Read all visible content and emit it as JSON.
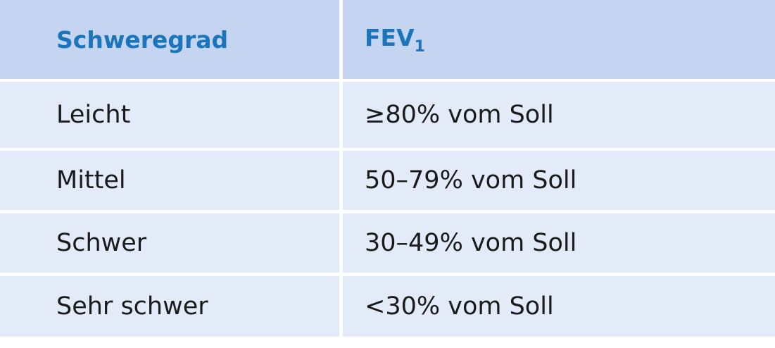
{
  "table": {
    "columns": [
      {
        "label": "Schweregrad"
      },
      {
        "label": "FEV",
        "subscript": "1"
      }
    ],
    "rows": [
      [
        "Leicht",
        "≥80% vom Soll"
      ],
      [
        "Mittel",
        "50–79% vom Soll"
      ],
      [
        "Schwer",
        "30–49% vom Soll"
      ],
      [
        "Sehr schwer",
        "<30% vom Soll"
      ]
    ]
  }
}
